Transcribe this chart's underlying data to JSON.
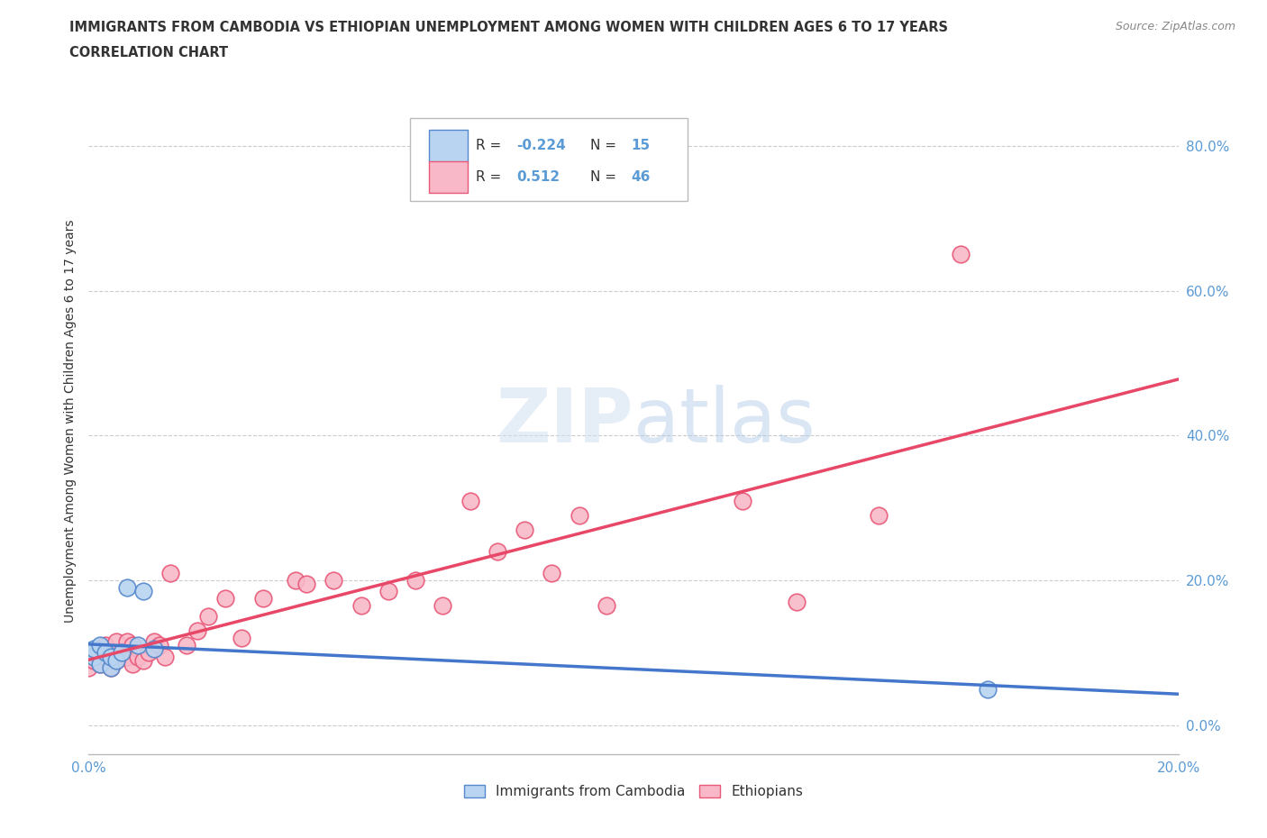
{
  "title_line1": "IMMIGRANTS FROM CAMBODIA VS ETHIOPIAN UNEMPLOYMENT AMONG WOMEN WITH CHILDREN AGES 6 TO 17 YEARS",
  "title_line2": "CORRELATION CHART",
  "source": "Source: ZipAtlas.com",
  "ylabel": "Unemployment Among Women with Children Ages 6 to 17 years",
  "xlim": [
    0.0,
    0.2
  ],
  "ylim": [
    -0.04,
    0.88
  ],
  "yticks": [
    0.0,
    0.2,
    0.4,
    0.6,
    0.8
  ],
  "xticks": [
    0.0,
    0.05,
    0.1,
    0.15,
    0.2
  ],
  "xtick_labels": [
    "0.0%",
    "",
    "",
    "",
    "20.0%"
  ],
  "watermark_text": "ZIPatlas",
  "cambodia_R": -0.224,
  "cambodia_N": 15,
  "ethiopian_R": 0.512,
  "ethiopian_N": 46,
  "cambodia_fill": "#b8d4f0",
  "cambodia_edge": "#5588cc",
  "ethiopian_fill": "#f8b8c8",
  "ethiopian_edge": "#e85878",
  "trendline_cambodia": "#4477cc",
  "trendline_ethiopian": "#e84868",
  "legend_label_cambodia": "Immigrants from Cambodia",
  "legend_label_ethiopian": "Ethiopians",
  "background_color": "#ffffff",
  "grid_color": "#cccccc",
  "axis_color": "#5b9bd5",
  "text_color": "#333333",
  "cambodia_x": [
    0.0,
    0.001,
    0.001,
    0.002,
    0.002,
    0.003,
    0.004,
    0.004,
    0.005,
    0.006,
    0.007,
    0.009,
    0.01,
    0.012,
    0.165
  ],
  "cambodia_y": [
    0.1,
    0.095,
    0.105,
    0.11,
    0.085,
    0.1,
    0.08,
    0.095,
    0.09,
    0.1,
    0.19,
    0.11,
    0.185,
    0.105,
    0.05
  ],
  "ethiopian_x": [
    0.0,
    0.001,
    0.001,
    0.002,
    0.002,
    0.003,
    0.003,
    0.004,
    0.004,
    0.005,
    0.005,
    0.006,
    0.007,
    0.007,
    0.008,
    0.008,
    0.009,
    0.01,
    0.011,
    0.012,
    0.013,
    0.014,
    0.015,
    0.018,
    0.02,
    0.022,
    0.025,
    0.028,
    0.032,
    0.038,
    0.04,
    0.045,
    0.05,
    0.055,
    0.06,
    0.065,
    0.07,
    0.075,
    0.08,
    0.085,
    0.09,
    0.095,
    0.12,
    0.13,
    0.145,
    0.16
  ],
  "ethiopian_y": [
    0.08,
    0.09,
    0.1,
    0.085,
    0.105,
    0.095,
    0.11,
    0.08,
    0.1,
    0.09,
    0.115,
    0.1,
    0.095,
    0.115,
    0.085,
    0.11,
    0.095,
    0.09,
    0.1,
    0.115,
    0.11,
    0.095,
    0.21,
    0.11,
    0.13,
    0.15,
    0.175,
    0.12,
    0.175,
    0.2,
    0.195,
    0.2,
    0.165,
    0.185,
    0.2,
    0.165,
    0.31,
    0.24,
    0.27,
    0.21,
    0.29,
    0.165,
    0.31,
    0.17,
    0.29,
    0.65
  ]
}
